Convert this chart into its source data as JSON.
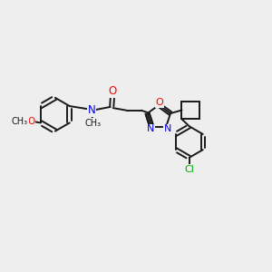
{
  "bg_color": "#eeeeee",
  "bond_color": "#1a1a1a",
  "atom_colors": {
    "O": "#ff0000",
    "N": "#0000ee",
    "Cl": "#00aa00",
    "C": "#1a1a1a"
  },
  "lw": 1.4,
  "fontsize": 8.0
}
